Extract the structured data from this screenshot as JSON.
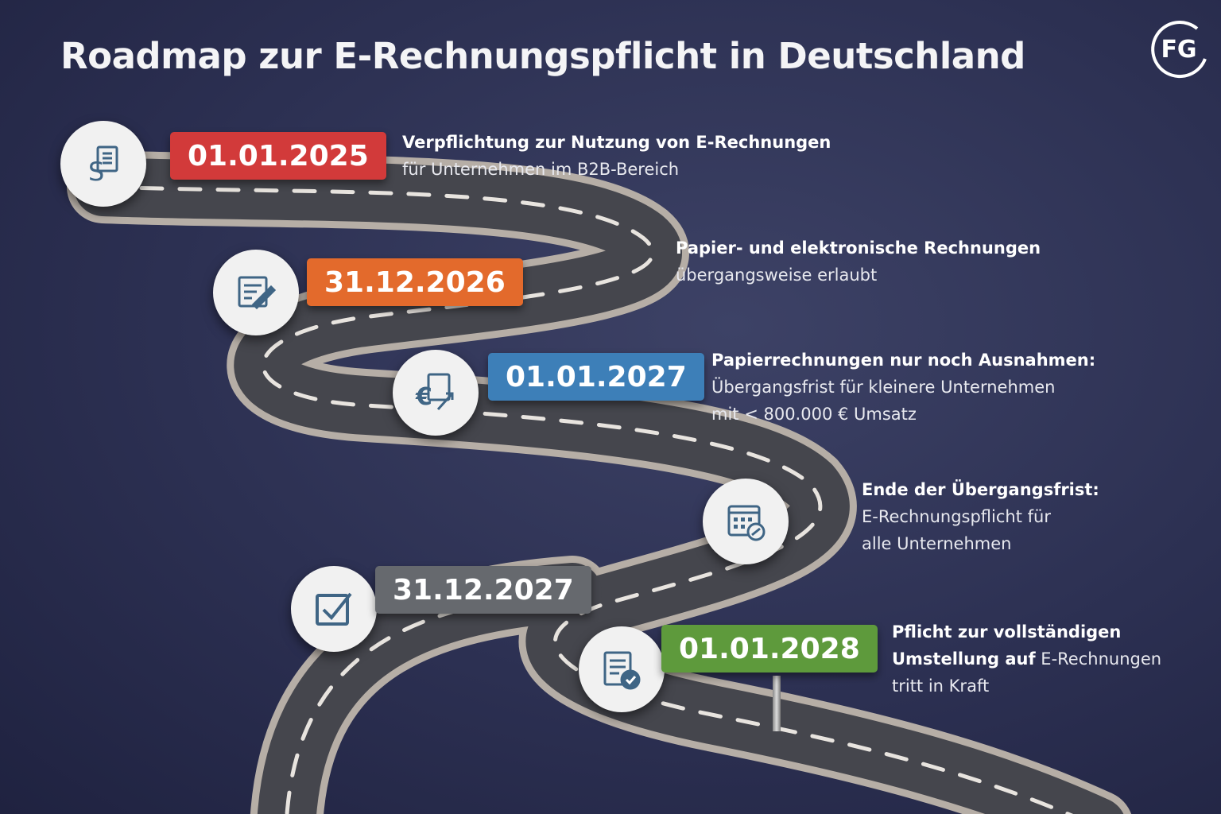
{
  "title": "Roadmap zur E-Rechnungspflicht in Deutschland",
  "logo": {
    "text": "FG"
  },
  "colors": {
    "red": "#d23a3a",
    "orange": "#e36a2c",
    "blue": "#3d7fb8",
    "gray": "#66696e",
    "green": "#5e9a3c",
    "background": "#2c3052",
    "road": "#4a4b52"
  },
  "milestones": [
    {
      "date": "01.01.2025",
      "icon": "document-paragraph-icon",
      "bold": "Verpflichtung zur Nutzung von E-Rechnungen",
      "text": [
        "für Unternehmen im B2B-Bereich"
      ]
    },
    {
      "date": "31.12.2026",
      "icon": "document-edit-icon",
      "bold": "Papier- und elektronische Rechnungen",
      "text": [
        "übergangsweise erlaubt"
      ]
    },
    {
      "date": "01.01.2027",
      "icon": "euro-invoice-icon",
      "bold": "Papierrechnungen nur noch Ausnahmen:",
      "text": [
        "Übergangsfrist für kleinere Unternehmen",
        "mit < 800.000 € Umsatz"
      ]
    },
    {
      "date": "",
      "icon": "calendar-check-icon",
      "bold": "Ende der Übergangsfrist:",
      "text": [
        "E-Rechnungspflicht für",
        "alle Unternehmen"
      ]
    },
    {
      "date": "31.12.2027",
      "icon": "checkbox-icon",
      "bold": "",
      "text": []
    },
    {
      "date": "01.01.2028",
      "icon": "clipboard-check-icon",
      "bold": "Pflicht zur vollständigen",
      "bold2": "Umstellung auf",
      "text2": " E-Rechnungen",
      "text": [
        "tritt in Kraft"
      ]
    }
  ]
}
